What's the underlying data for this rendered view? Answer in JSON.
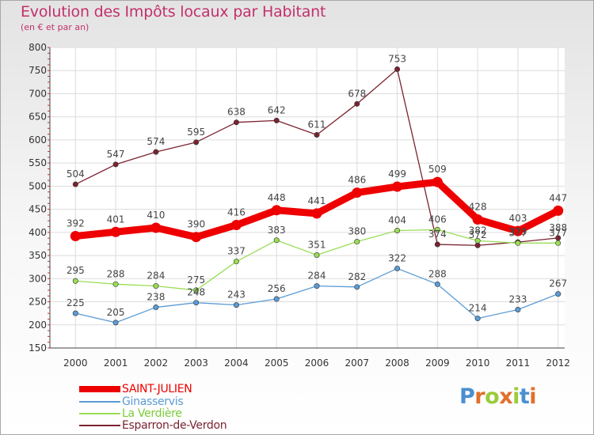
{
  "chart_data": {
    "type": "line",
    "title": "Evolution des Impôts locaux par Habitant",
    "subtitle": "(en € et par an)",
    "xlabel": "",
    "ylabel": "",
    "x": [
      "2000",
      "2001",
      "2002",
      "2003",
      "2004",
      "2005",
      "2006",
      "2007",
      "2008",
      "2009",
      "2010",
      "2011",
      "2012"
    ],
    "ylim": [
      150,
      800
    ],
    "yticks": [
      150,
      200,
      250,
      300,
      350,
      400,
      450,
      500,
      550,
      600,
      650,
      700,
      750,
      800
    ],
    "grid": true,
    "legend_position": "bottom-left",
    "series": [
      {
        "name": "SAINT-JULIEN",
        "color": "#ee0000",
        "values": [
          392,
          401,
          410,
          390,
          416,
          448,
          441,
          486,
          499,
          509,
          428,
          403,
          447
        ]
      },
      {
        "name": "Ginasservis",
        "color": "#5b9bd5",
        "values": [
          225,
          205,
          238,
          248,
          243,
          256,
          284,
          282,
          322,
          288,
          214,
          233,
          267
        ]
      },
      {
        "name": "La Verdière",
        "color": "#99dd55",
        "values": [
          295,
          288,
          284,
          275,
          337,
          383,
          351,
          380,
          404,
          406,
          382,
          377,
          377
        ]
      },
      {
        "name": "Esparron-de-Verdon",
        "color": "#7a2330",
        "values": [
          504,
          547,
          574,
          595,
          638,
          642,
          611,
          678,
          753,
          374,
          372,
          379,
          388
        ]
      }
    ]
  },
  "logo": {
    "letters": [
      "P",
      "r",
      "o",
      "x",
      "i",
      "t",
      "i"
    ],
    "colors": [
      "#4a8fd0",
      "#e0702a",
      "#9acb3c",
      "#e0702a",
      "#9acb3c",
      "#4a8fd0",
      "#e0702a"
    ]
  }
}
